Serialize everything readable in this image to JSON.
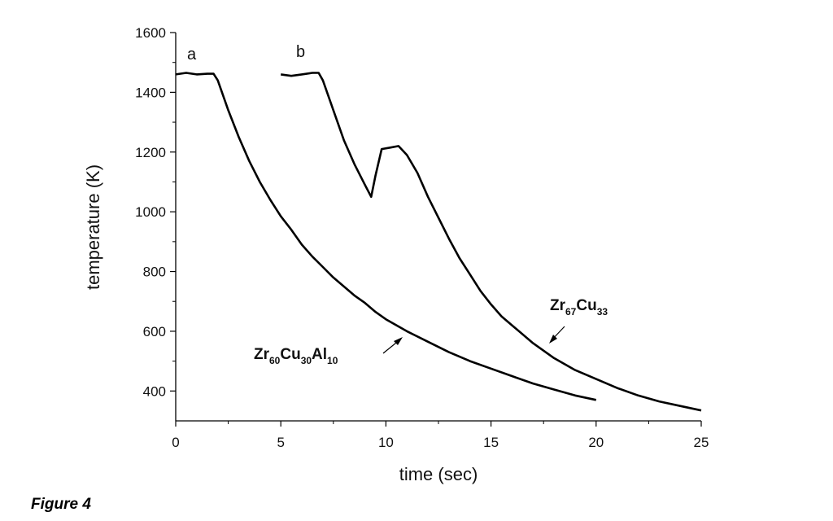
{
  "figure_caption": "Figure 4",
  "chart_data": {
    "type": "line",
    "xlabel": "time (sec)",
    "ylabel": "temperature (K)",
    "xlim": [
      0,
      25
    ],
    "ylim": [
      300,
      1600
    ],
    "x_ticks": [
      0,
      5,
      10,
      15,
      20,
      25
    ],
    "y_ticks": [
      400,
      600,
      800,
      1000,
      1200,
      1400,
      1600
    ],
    "grid": false,
    "series": [
      {
        "tag": "a",
        "label": {
          "base": [
            "Zr",
            "Cu",
            "Al"
          ],
          "subs": [
            "60",
            "30",
            "10"
          ]
        },
        "x": [
          0,
          0.5,
          1.0,
          1.5,
          1.8,
          2.0,
          2.5,
          3,
          3.5,
          4,
          4.5,
          5,
          5.5,
          6,
          6.5,
          7,
          7.5,
          8,
          8.5,
          9,
          9.5,
          10,
          11,
          12,
          13,
          14,
          15,
          16,
          17,
          18,
          19,
          20
        ],
        "y": [
          1460,
          1465,
          1460,
          1462,
          1462,
          1440,
          1340,
          1250,
          1170,
          1100,
          1040,
          985,
          940,
          890,
          850,
          815,
          780,
          750,
          720,
          695,
          665,
          640,
          600,
          565,
          530,
          500,
          475,
          450,
          425,
          405,
          385,
          370
        ]
      },
      {
        "tag": "b",
        "label": {
          "base": [
            "Zr",
            "Cu"
          ],
          "subs": [
            "67",
            "33"
          ]
        },
        "x": [
          5,
          5.5,
          6,
          6.5,
          6.8,
          7,
          7.5,
          8,
          8.5,
          9,
          9.3,
          9.5,
          9.8,
          10.2,
          10.6,
          11,
          11.5,
          12,
          12.5,
          13,
          13.5,
          14,
          14.5,
          15,
          15.5,
          16,
          17,
          18,
          19,
          20,
          21,
          22,
          23,
          24,
          25
        ],
        "y": [
          1460,
          1455,
          1460,
          1465,
          1465,
          1440,
          1340,
          1240,
          1160,
          1090,
          1050,
          1120,
          1210,
          1215,
          1220,
          1190,
          1130,
          1050,
          980,
          910,
          845,
          790,
          735,
          690,
          650,
          620,
          560,
          510,
          470,
          440,
          410,
          385,
          365,
          350,
          335
        ]
      }
    ]
  }
}
